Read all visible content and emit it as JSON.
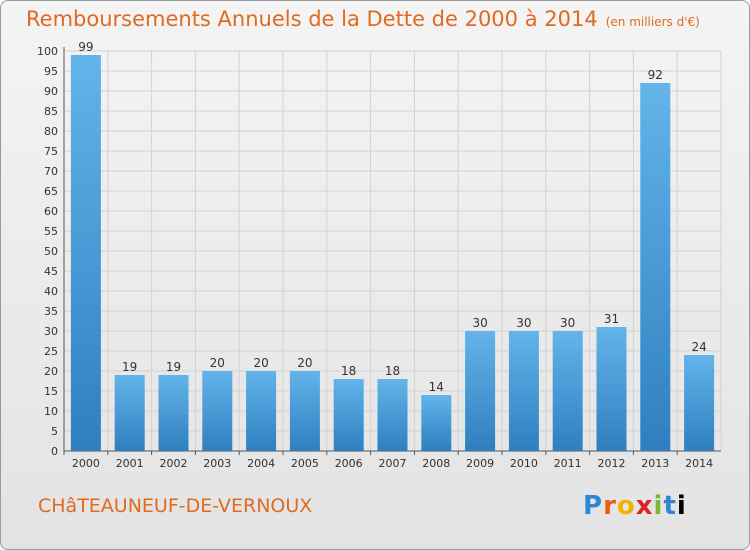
{
  "header": {
    "title": "Remboursements Annuels de la Dette de 2000 à 2014",
    "unit": "(en milliers d'€)"
  },
  "footer": {
    "commune": "CHâTEAUNEUF-DE-VERNOUX",
    "logo_text": "Proxiti"
  },
  "colors": {
    "bar_light": "#5dade2",
    "bar_dark": "#2f80c2",
    "title": "#e06a1f"
  },
  "chart_data": {
    "type": "bar",
    "categories": [
      "2000",
      "2001",
      "2002",
      "2003",
      "2004",
      "2005",
      "2006",
      "2007",
      "2008",
      "2009",
      "2010",
      "2011",
      "2012",
      "2013",
      "2014"
    ],
    "values": [
      99,
      19,
      19,
      20,
      20,
      20,
      18,
      18,
      14,
      30,
      30,
      30,
      31,
      92,
      24
    ],
    "ylim": [
      0,
      100
    ],
    "yticks": [
      0,
      5,
      10,
      15,
      20,
      25,
      30,
      35,
      40,
      45,
      50,
      55,
      60,
      65,
      70,
      75,
      80,
      85,
      90,
      95,
      100
    ],
    "grid": true,
    "legend": "none"
  }
}
